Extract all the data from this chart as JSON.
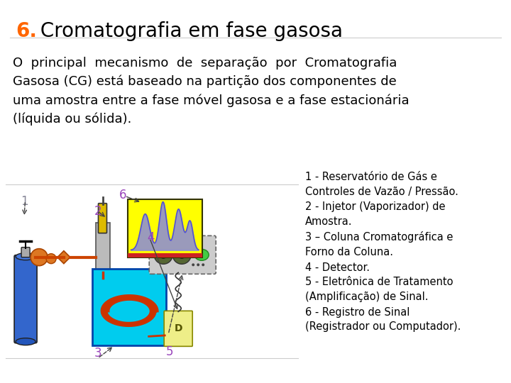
{
  "title_number": "6.",
  "title_number_color": "#FF6600",
  "title_text": " Cromatografia em fase gasosa",
  "title_color": "#000000",
  "title_fontsize": 20,
  "body_text": "O  principal  mecanismo  de  separação  por  Cromatografia\nGasosa (CG) está baseado na partição dos componentes de\numa amostra entre a fase móvel gasosa e a fase estacionária\n(líquida ou sólida).",
  "body_fontsize": 13,
  "body_color": "#000000",
  "annotation_text": "1 - Reservatório de Gás e\nControles de Vazão / Pressão.\n2 - Injetor (Vaporizador) de\nAmostra.\n3 – Coluna Cromatográfica e\nForno da Coluna.\n4 - Detector.\n5 - Eletrônica de Tratamento\n(Amplificação) de Sinal.\n6 - Registro de Sinal\n(Registrador ou Computador).",
  "annotation_fontsize": 10.5,
  "annotation_color": "#000000",
  "bg_color": "#FFFFFF",
  "label_1_color": "#888899",
  "label_2_color": "#9944BB",
  "label_3_color": "#9944BB",
  "label_4_color": "#9944BB",
  "label_5_color": "#9944BB",
  "label_6_color": "#9944BB"
}
